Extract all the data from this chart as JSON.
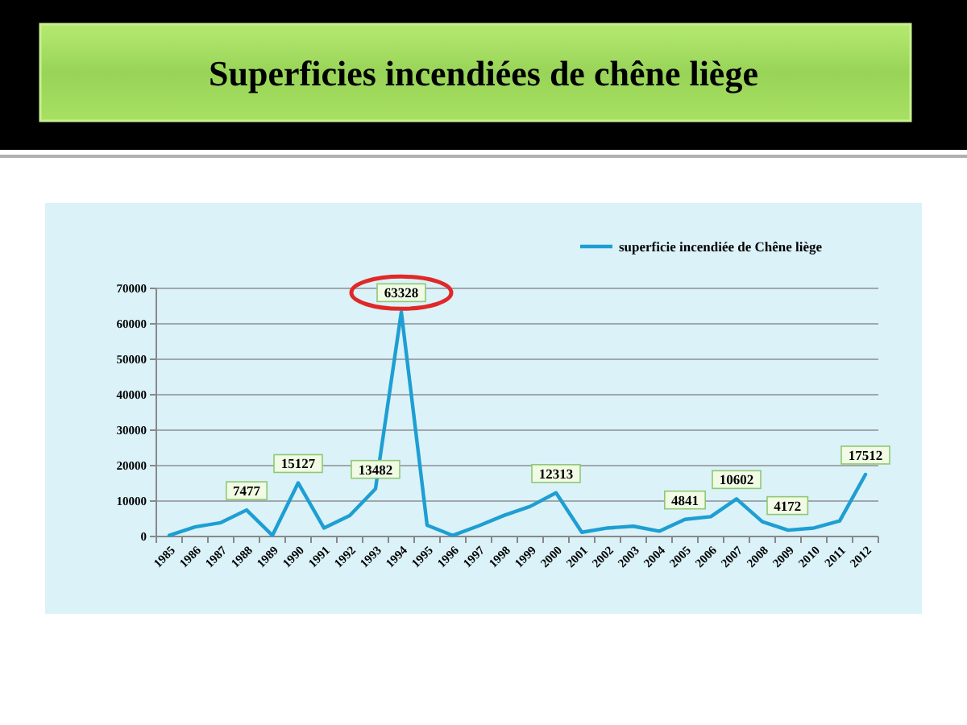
{
  "chart_data": {
    "type": "line",
    "title": "Superficies incendiées de chêne liège",
    "categories": [
      "1985",
      "1986",
      "1987",
      "1988",
      "1989",
      "1990",
      "1991",
      "1992",
      "1993",
      "1994",
      "1995",
      "1996",
      "1997",
      "1998",
      "1999",
      "2000",
      "2001",
      "2002",
      "2003",
      "2004",
      "2005",
      "2006",
      "2007",
      "2008",
      "2009",
      "2010",
      "2011",
      "2012"
    ],
    "series": [
      {
        "name": "superficie incendiée de Chêne liège",
        "color": "#1e9ed3",
        "values": [
          300,
          2700,
          3900,
          7477,
          300,
          15127,
          2400,
          5900,
          13482,
          63328,
          3200,
          300,
          3000,
          6000,
          8500,
          12313,
          1200,
          2400,
          2900,
          1500,
          4841,
          5600,
          10602,
          4172,
          1800,
          2400,
          4400,
          17512
        ],
        "value_labels": [
          null,
          null,
          null,
          "7477",
          null,
          "15127",
          null,
          null,
          "13482",
          "63328",
          null,
          null,
          null,
          null,
          null,
          "12313",
          null,
          null,
          null,
          null,
          "4841",
          null,
          "10602",
          "4172",
          null,
          null,
          null,
          "17512"
        ]
      }
    ],
    "ylim": [
      0,
      70000
    ],
    "yticks": [
      0,
      10000,
      20000,
      30000,
      40000,
      50000,
      60000,
      70000
    ],
    "grid": "y",
    "legend": "top right",
    "marker": "none"
  }
}
